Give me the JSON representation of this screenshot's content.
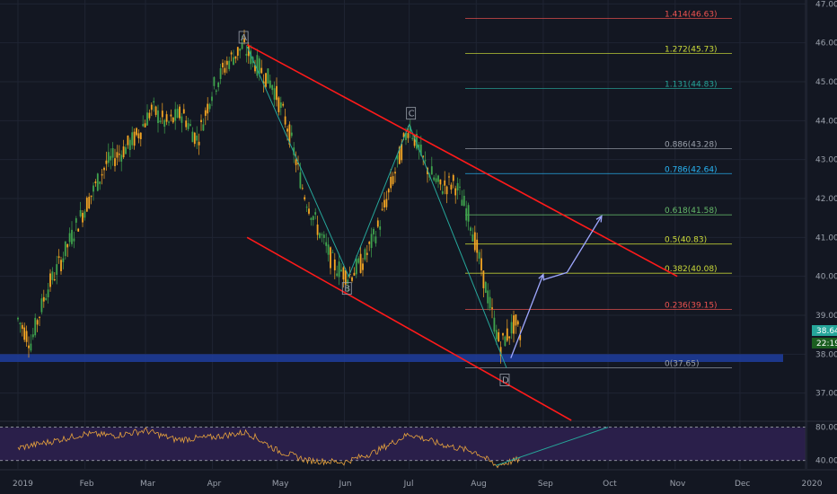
{
  "colors": {
    "background": "#131722",
    "grid": "#1f2433",
    "up_candle": "#3fa34d",
    "down_candle": "#f5a623",
    "channel": "#ff1a1a",
    "support_zone": "#1f3d9e",
    "wave_line": "#26a69a",
    "projection_arrow": "#9fa8ff",
    "rsi_line": "#e8a33d",
    "rsi_band": "#2a1f4a",
    "price_badge": "#26a69a",
    "time_badge": "#1b5e20"
  },
  "price_badge": "38.64",
  "time_badge": "22:19",
  "chart_data": {
    "type": "candlestick",
    "title": "",
    "xlabel": "",
    "ylabel": "",
    "ylim": [
      36.3,
      47.1
    ],
    "y_ticks": [
      "47.00",
      "46.00",
      "45.00",
      "44.00",
      "43.00",
      "42.00",
      "41.00",
      "40.00",
      "39.00",
      "38.00",
      "37.00"
    ],
    "x_ticks": [
      "2019",
      "Feb",
      "Mar",
      "Apr",
      "May",
      "Jun",
      "Jul",
      "Aug",
      "Sep",
      "Oct",
      "Nov",
      "Dec",
      "2020"
    ],
    "price_path": [
      [
        "2019-01-01",
        38.9
      ],
      [
        "2019-01-07",
        38.3
      ],
      [
        "2019-01-14",
        39.6
      ],
      [
        "2019-01-21",
        40.4
      ],
      [
        "2019-01-28",
        41.3
      ],
      [
        "2019-02-04",
        42.1
      ],
      [
        "2019-02-11",
        42.9
      ],
      [
        "2019-02-18",
        43.2
      ],
      [
        "2019-02-25",
        43.6
      ],
      [
        "2019-03-04",
        44.3
      ],
      [
        "2019-03-11",
        43.9
      ],
      [
        "2019-03-18",
        44.2
      ],
      [
        "2019-03-25",
        43.5
      ],
      [
        "2019-04-01",
        44.8
      ],
      [
        "2019-04-08",
        45.5
      ],
      [
        "2019-04-15",
        45.9
      ],
      [
        "2019-04-22",
        45.4
      ],
      [
        "2019-04-29",
        44.9
      ],
      [
        "2019-05-06",
        43.8
      ],
      [
        "2019-05-13",
        42.2
      ],
      [
        "2019-05-20",
        41.2
      ],
      [
        "2019-05-27",
        40.3
      ],
      [
        "2019-06-03",
        40.0
      ],
      [
        "2019-06-10",
        40.4
      ],
      [
        "2019-06-17",
        41.3
      ],
      [
        "2019-06-24",
        42.6
      ],
      [
        "2019-07-01",
        43.9
      ],
      [
        "2019-07-08",
        42.9
      ],
      [
        "2019-07-15",
        42.3
      ],
      [
        "2019-07-22",
        42.4
      ],
      [
        "2019-07-29",
        41.5
      ],
      [
        "2019-08-05",
        39.8
      ],
      [
        "2019-08-12",
        38.2
      ],
      [
        "2019-08-19",
        38.8
      ],
      [
        "2019-08-22",
        38.4
      ]
    ],
    "wave_points": [
      {
        "label": "A",
        "date": "2019-04-17",
        "value": 45.9
      },
      {
        "label": "B",
        "date": "2019-06-03",
        "value": 40.0
      },
      {
        "label": "C",
        "date": "2019-07-01",
        "value": 43.9
      },
      {
        "label": "D",
        "date": "2019-08-15",
        "value": 37.65
      }
    ],
    "fib_levels": [
      {
        "label": "1.414(46.63)",
        "value": 46.63,
        "color": "#ef5350"
      },
      {
        "label": "1.272(45.73)",
        "value": 45.73,
        "color": "#cddc39"
      },
      {
        "label": "1.131(44.83)",
        "value": 44.83,
        "color": "#26a69a"
      },
      {
        "label": "0.886(43.28)",
        "value": 43.28,
        "color": "#9aa0ab"
      },
      {
        "label": "0.786(42.64)",
        "value": 42.64,
        "color": "#29b6f6"
      },
      {
        "label": "0.618(41.58)",
        "value": 41.58,
        "color": "#66bb6a"
      },
      {
        "label": "0.5(40.83)",
        "value": 40.83,
        "color": "#cddc39"
      },
      {
        "label": "0.382(40.08)",
        "value": 40.08,
        "color": "#cddc39"
      },
      {
        "label": "0.236(39.15)",
        "value": 39.15,
        "color": "#ef5350"
      },
      {
        "label": "0(37.65)",
        "value": 37.65,
        "color": "#9aa0ab"
      }
    ],
    "support_zone": [
      37.8,
      38.0
    ],
    "channel_upper": [
      [
        "2019-04-17",
        45.95
      ],
      [
        "2019-11-02",
        40.0
      ]
    ],
    "channel_lower": [
      [
        "2019-04-17",
        41.0
      ],
      [
        "2019-09-14",
        36.3
      ]
    ],
    "projection": [
      [
        "2019-08-17",
        37.9
      ],
      [
        "2019-09-01",
        40.05
      ],
      [
        "2019-09-12",
        40.1
      ],
      [
        "2019-09-28",
        41.55
      ]
    ],
    "rsi": {
      "ylim": [
        30,
        85
      ],
      "y_ticks": [
        "80.00",
        "40.00"
      ],
      "band": [
        40,
        80
      ],
      "path": [
        [
          "2019-01-01",
          55
        ],
        [
          "2019-01-15",
          62
        ],
        [
          "2019-02-01",
          72
        ],
        [
          "2019-02-15",
          70
        ],
        [
          "2019-03-01",
          76
        ],
        [
          "2019-03-15",
          65
        ],
        [
          "2019-04-01",
          68
        ],
        [
          "2019-04-17",
          74
        ],
        [
          "2019-05-01",
          52
        ],
        [
          "2019-05-15",
          40
        ],
        [
          "2019-06-01",
          38
        ],
        [
          "2019-06-15",
          50
        ],
        [
          "2019-07-01",
          72
        ],
        [
          "2019-07-15",
          60
        ],
        [
          "2019-08-01",
          50
        ],
        [
          "2019-08-10",
          34
        ],
        [
          "2019-08-22",
          42
        ]
      ],
      "trend_line": [
        [
          "2019-08-10",
          34
        ],
        [
          "2019-10-01",
          80
        ]
      ]
    }
  }
}
